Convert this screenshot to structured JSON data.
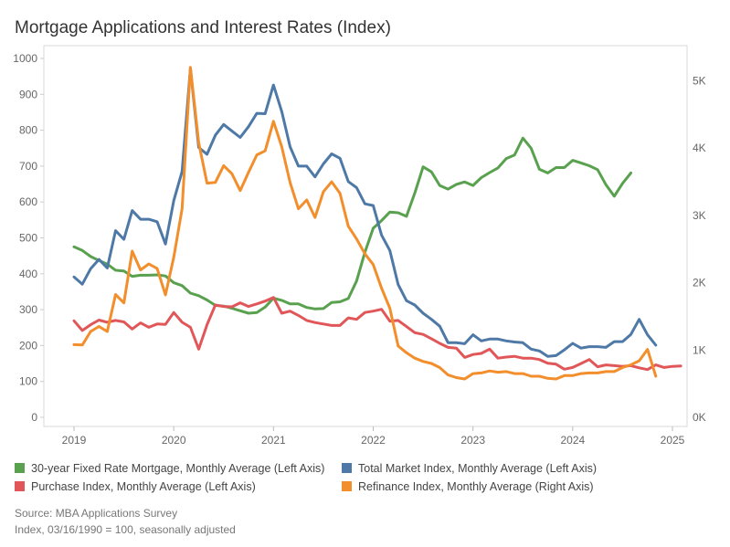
{
  "title": "Mortgage Applications and Interest Rates (Index)",
  "source_line_1": "Source: MBA Applications Survey",
  "source_line_2": "Index, 03/16/1990 = 100, seasonally adjusted",
  "chart_data": {
    "type": "line",
    "x_ticks": [
      "2019",
      "2020",
      "2021",
      "2022",
      "2023",
      "2024",
      "2025"
    ],
    "left_axis": {
      "ticks": [
        0,
        100,
        200,
        300,
        400,
        500,
        600,
        700,
        800,
        900,
        1000
      ],
      "range": [
        0,
        1000
      ]
    },
    "right_axis": {
      "ticks": [
        "0K",
        "1K",
        "2K",
        "3K",
        "4K",
        "5K"
      ],
      "range": [
        0,
        5333
      ]
    },
    "legend": [
      {
        "label": "30-year Fixed Rate Mortgage, Monthly Average (Left Axis)",
        "color": "#59a14f"
      },
      {
        "label": "Total Market Index, Monthly Average (Left Axis)",
        "color": "#4e79a7"
      },
      {
        "label": "Purchase Index, Monthly Average (Left Axis)",
        "color": "#e15759"
      },
      {
        "label": "Refinance Index, Monthly Average (Right Axis)",
        "color": "#f28e2b"
      }
    ],
    "series": [
      {
        "name": "30-year Fixed Rate Mortgage, Monthly Average (Left Axis)",
        "axis": "left",
        "color": "#59a14f",
        "start": [
          2019,
          1
        ],
        "values": [
          475,
          465,
          448,
          437,
          427,
          410,
          408,
          393,
          396,
          396,
          397,
          394,
          375,
          367,
          346,
          339,
          327,
          312,
          310,
          304,
          297,
          290,
          292,
          307,
          332,
          326,
          316,
          316,
          306,
          302,
          303,
          320,
          322,
          331,
          380,
          460,
          527,
          548,
          572,
          570,
          560,
          625,
          698,
          684,
          646,
          636,
          649,
          656,
          646,
          668,
          682,
          695,
          721,
          731,
          778,
          750,
          691,
          681,
          696,
          696,
          716,
          709,
          701,
          690,
          648,
          616,
          652,
          681
        ]
      },
      {
        "name": "Total Market Index, Monthly Average (Left Axis)",
        "axis": "left",
        "color": "#4e79a7",
        "start": [
          2019,
          1
        ],
        "values": [
          391,
          371,
          414,
          440,
          416,
          520,
          496,
          576,
          552,
          552,
          545,
          483,
          604,
          685,
          972,
          752,
          733,
          786,
          816,
          798,
          780,
          810,
          847,
          846,
          926,
          852,
          754,
          700,
          700,
          670,
          706,
          734,
          722,
          657,
          640,
          595,
          590,
          508,
          465,
          370,
          325,
          313,
          290,
          273,
          254,
          208,
          208,
          205,
          230,
          213,
          218,
          218,
          213,
          210,
          208,
          190,
          185,
          170,
          172,
          188,
          206,
          193,
          197,
          197,
          195,
          211,
          211,
          231,
          273,
          230,
          201
        ]
      },
      {
        "name": "Purchase Index, Monthly Average (Left Axis)",
        "axis": "left",
        "color": "#e15759",
        "start": [
          2019,
          1
        ],
        "values": [
          269,
          242,
          258,
          271,
          265,
          270,
          266,
          246,
          263,
          251,
          260,
          259,
          292,
          265,
          251,
          190,
          258,
          313,
          309,
          308,
          319,
          309,
          316,
          324,
          334,
          290,
          296,
          284,
          270,
          264,
          260,
          256,
          256,
          277,
          273,
          292,
          296,
          301,
          268,
          270,
          253,
          236,
          231,
          219,
          206,
          195,
          193,
          167,
          175,
          178,
          190,
          165,
          168,
          170,
          165,
          165,
          161,
          151,
          148,
          134,
          139,
          150,
          161,
          141,
          146,
          144,
          142,
          144,
          138,
          133,
          146,
          139,
          142,
          143
        ]
      },
      {
        "name": "Refinance Index, Monthly Average (Right Axis)",
        "axis": "right",
        "color": "#f28e2b",
        "start": [
          2019,
          1
        ],
        "values": [
          1080,
          1075,
          1275,
          1350,
          1275,
          1825,
          1700,
          2470,
          2190,
          2280,
          2210,
          1820,
          2380,
          3100,
          5200,
          4080,
          3480,
          3490,
          3740,
          3620,
          3370,
          3640,
          3900,
          3960,
          4400,
          4020,
          3490,
          3100,
          3230,
          2970,
          3350,
          3500,
          3330,
          2840,
          2650,
          2430,
          2270,
          1920,
          1620,
          1060,
          960,
          880,
          830,
          800,
          740,
          630,
          590,
          570,
          650,
          660,
          690,
          670,
          680,
          650,
          650,
          610,
          610,
          580,
          570,
          620,
          620,
          650,
          660,
          660,
          680,
          680,
          740,
          780,
          840,
          1010,
          610
        ]
      }
    ]
  }
}
